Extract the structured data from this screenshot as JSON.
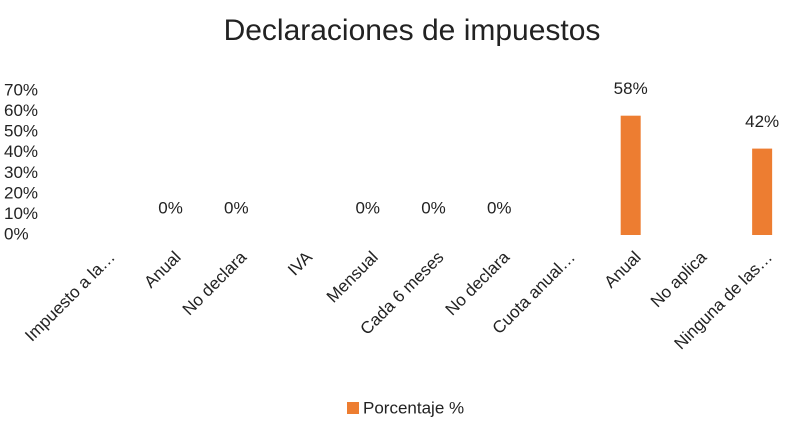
{
  "chart_data": {
    "type": "bar",
    "title": "Declaraciones de impuestos",
    "categories": [
      "Impuesto a la…",
      "Anual",
      "No declara",
      "IVA",
      "Mensual",
      "Cada 6 meses",
      "No declara",
      "Cuota anual…",
      "Anual",
      "No aplica",
      "Ninguna de las…"
    ],
    "series": [
      {
        "name": "Porcentaje %",
        "color": "#ed7d31",
        "values": [
          null,
          0,
          0,
          null,
          0,
          0,
          0,
          null,
          58,
          null,
          42
        ],
        "value_labels": [
          null,
          "0%",
          "0%",
          null,
          "0%",
          "0%",
          "0%",
          null,
          "58%",
          null,
          "42%"
        ]
      }
    ],
    "ylim": [
      0,
      70
    ],
    "yticks": [
      {
        "value": 0,
        "label": "0%"
      },
      {
        "value": 10,
        "label": "10%"
      },
      {
        "value": 20,
        "label": "20%"
      },
      {
        "value": 30,
        "label": "30%"
      },
      {
        "value": 40,
        "label": "40%"
      },
      {
        "value": 50,
        "label": "50%"
      },
      {
        "value": 60,
        "label": "60%"
      },
      {
        "value": 70,
        "label": "70%"
      }
    ],
    "grid": false,
    "legend": "bottom"
  }
}
